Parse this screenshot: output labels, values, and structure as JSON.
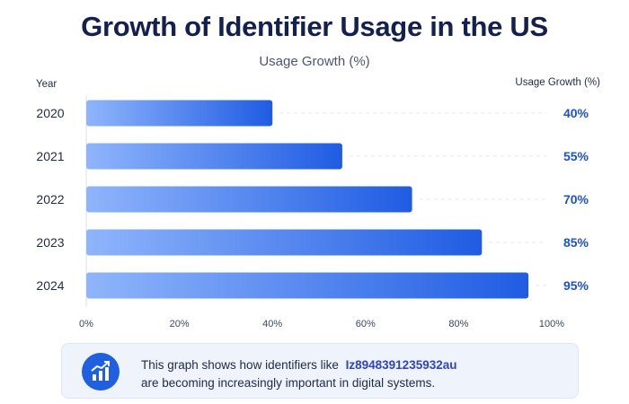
{
  "colors": {
    "bar_start": "#8fb5fb",
    "bar_end": "#1f5ce3",
    "value_label": "#1d52c8",
    "title": "#14204d"
  },
  "chart_data": {
    "type": "bar",
    "orientation": "horizontal",
    "title": "Growth of Identifier Usage in the US",
    "subtitle": "Usage Growth (%)",
    "y_header": "Year",
    "value_header": "Usage Growth (%)",
    "categories": [
      "2020",
      "2021",
      "2022",
      "2023",
      "2024"
    ],
    "values": [
      40,
      55,
      70,
      85,
      95
    ],
    "value_labels": [
      "40%",
      "55%",
      "70%",
      "85%",
      "95%"
    ],
    "xlim": [
      0,
      100
    ],
    "x_ticks": [
      "0%",
      "20%",
      "40%",
      "60%",
      "80%",
      "100%"
    ],
    "grid": "dashed guide from bar end to value label"
  },
  "info": {
    "icon": "growth-chart-icon",
    "text_before": "This graph shows how identifiers like",
    "code": "Iz8948391235932au",
    "text_after": "are becoming increasingly important in digital systems."
  }
}
